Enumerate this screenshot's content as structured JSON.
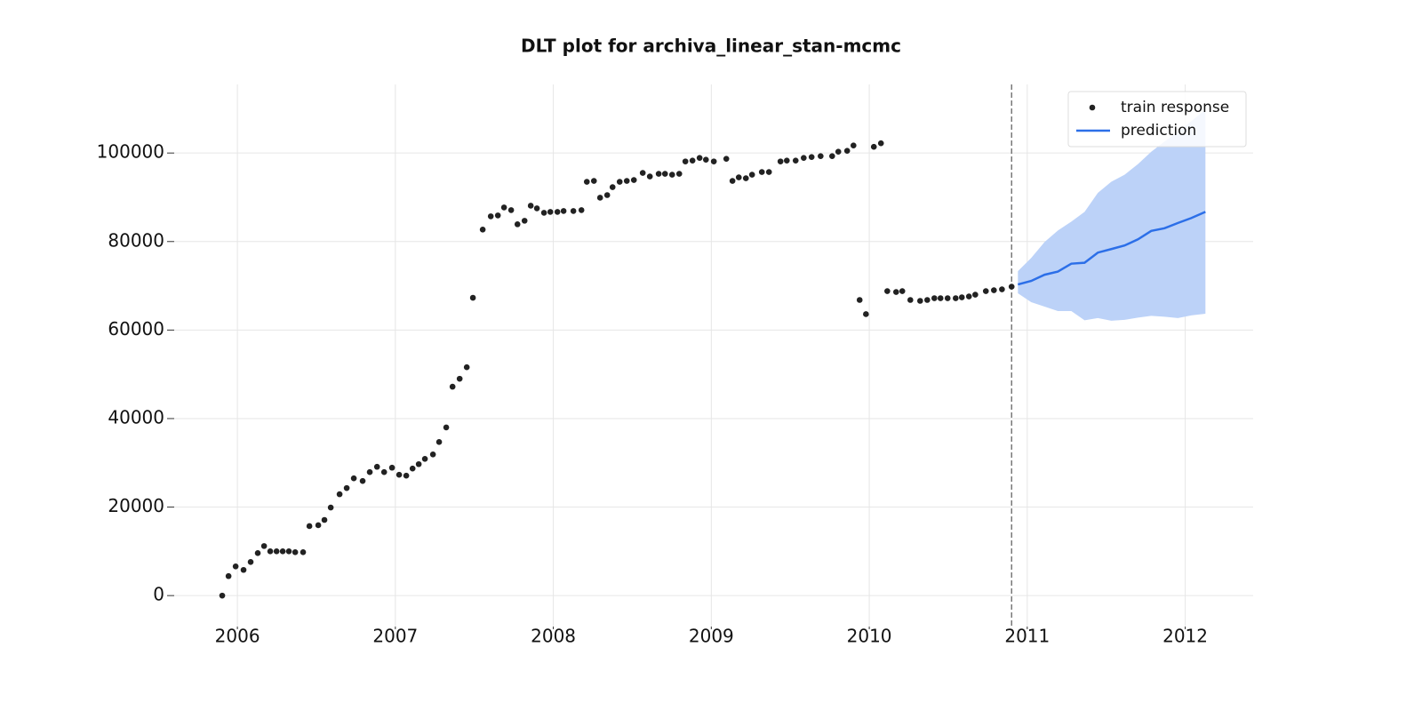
{
  "chart_data": {
    "type": "line",
    "title": "DLT plot for archiva_linear_stan-mcmc",
    "xlim": [
      2005.6,
      2012.43
    ],
    "xticks": [
      2006,
      2007,
      2008,
      2009,
      2010,
      2011,
      2012
    ],
    "ylim": [
      -7000,
      115500
    ],
    "yticks": [
      0,
      20000,
      40000,
      60000,
      80000,
      100000
    ],
    "grid": true,
    "legend": "upper right",
    "vline": 2010.901,
    "series": [
      {
        "name": "train response",
        "type": "scatter",
        "color": "#222222",
        "x": [
          2005.904,
          2005.944,
          2005.989,
          2006.039,
          2006.084,
          2006.129,
          2006.169,
          2006.208,
          2006.248,
          2006.287,
          2006.326,
          2006.366,
          2006.416,
          2006.456,
          2006.512,
          2006.551,
          2006.591,
          2006.647,
          2006.692,
          2006.737,
          2006.793,
          2006.838,
          2006.884,
          2006.929,
          2006.979,
          2007.024,
          2007.069,
          2007.109,
          2007.148,
          2007.187,
          2007.238,
          2007.277,
          2007.322,
          2007.362,
          2007.407,
          2007.452,
          2007.491,
          2007.553,
          2007.604,
          2007.649,
          2007.688,
          2007.733,
          2007.773,
          2007.818,
          2007.857,
          2007.896,
          2007.941,
          2007.981,
          2008.026,
          2008.065,
          2008.127,
          2008.178,
          2008.212,
          2008.257,
          2008.296,
          2008.341,
          2008.375,
          2008.42,
          2008.465,
          2008.51,
          2008.566,
          2008.611,
          2008.667,
          2008.707,
          2008.752,
          2008.797,
          2008.836,
          2008.881,
          2008.926,
          2008.966,
          2009.016,
          2009.095,
          2009.134,
          2009.174,
          2009.219,
          2009.258,
          2009.32,
          2009.365,
          2009.438,
          2009.478,
          2009.534,
          2009.585,
          2009.635,
          2009.692,
          2009.765,
          2009.804,
          2009.86,
          2009.9,
          2009.939,
          2009.979,
          2010.029,
          2010.074,
          2010.114,
          2010.17,
          2010.209,
          2010.26,
          2010.322,
          2010.367,
          2010.412,
          2010.451,
          2010.496,
          2010.547,
          2010.586,
          2010.631,
          2010.671,
          2010.738,
          2010.789,
          2010.84,
          2010.901
        ],
        "values": [
          0,
          4400,
          6600,
          5800,
          7600,
          9600,
          11200,
          10000,
          10000,
          10000,
          10000,
          9800,
          9800,
          15700,
          15900,
          17100,
          19900,
          22900,
          24300,
          26500,
          25900,
          27900,
          29100,
          27900,
          28900,
          27300,
          27100,
          28700,
          29700,
          30900,
          31900,
          34700,
          38000,
          47200,
          49000,
          51600,
          67300,
          82700,
          85700,
          85900,
          87700,
          87100,
          83900,
          84700,
          88100,
          87500,
          86500,
          86700,
          86700,
          86900,
          86900,
          87100,
          93500,
          93700,
          89900,
          90500,
          92300,
          93500,
          93700,
          93900,
          95500,
          94700,
          95300,
          95300,
          95100,
          95300,
          98100,
          98300,
          98900,
          98500,
          98100,
          98700,
          93700,
          94500,
          94300,
          95100,
          95700,
          95700,
          98100,
          98300,
          98300,
          98900,
          99100,
          99300,
          99300,
          100300,
          100500,
          101700,
          66800,
          63600,
          101400,
          102200,
          68800,
          68600,
          68800,
          66800,
          66600,
          66800,
          67200,
          67200,
          67200,
          67200,
          67400,
          67600,
          68000,
          68800,
          69000,
          69200,
          69800
        ]
      },
      {
        "name": "prediction",
        "type": "line",
        "color": "#2c6fe8",
        "band_color": "#bcd2f8",
        "x": [
          2010.941,
          2011.025,
          2011.11,
          2011.194,
          2011.279,
          2011.363,
          2011.447,
          2011.532,
          2011.616,
          2011.701,
          2011.785,
          2011.869,
          2011.954,
          2012.038,
          2012.128
        ],
        "values": [
          70300,
          71100,
          72500,
          73200,
          75000,
          75200,
          77500,
          78300,
          79100,
          80500,
          82400,
          83000,
          84200,
          85300,
          86700
        ],
        "lower": [
          68300,
          66300,
          65300,
          64300,
          64300,
          62200,
          62700,
          62100,
          62300,
          62800,
          63200,
          63000,
          62700,
          63300,
          63700
        ],
        "upper": [
          73300,
          76300,
          79900,
          82500,
          84500,
          86700,
          91000,
          93500,
          95100,
          97500,
          100300,
          102600,
          104800,
          107200,
          109800
        ]
      }
    ]
  }
}
